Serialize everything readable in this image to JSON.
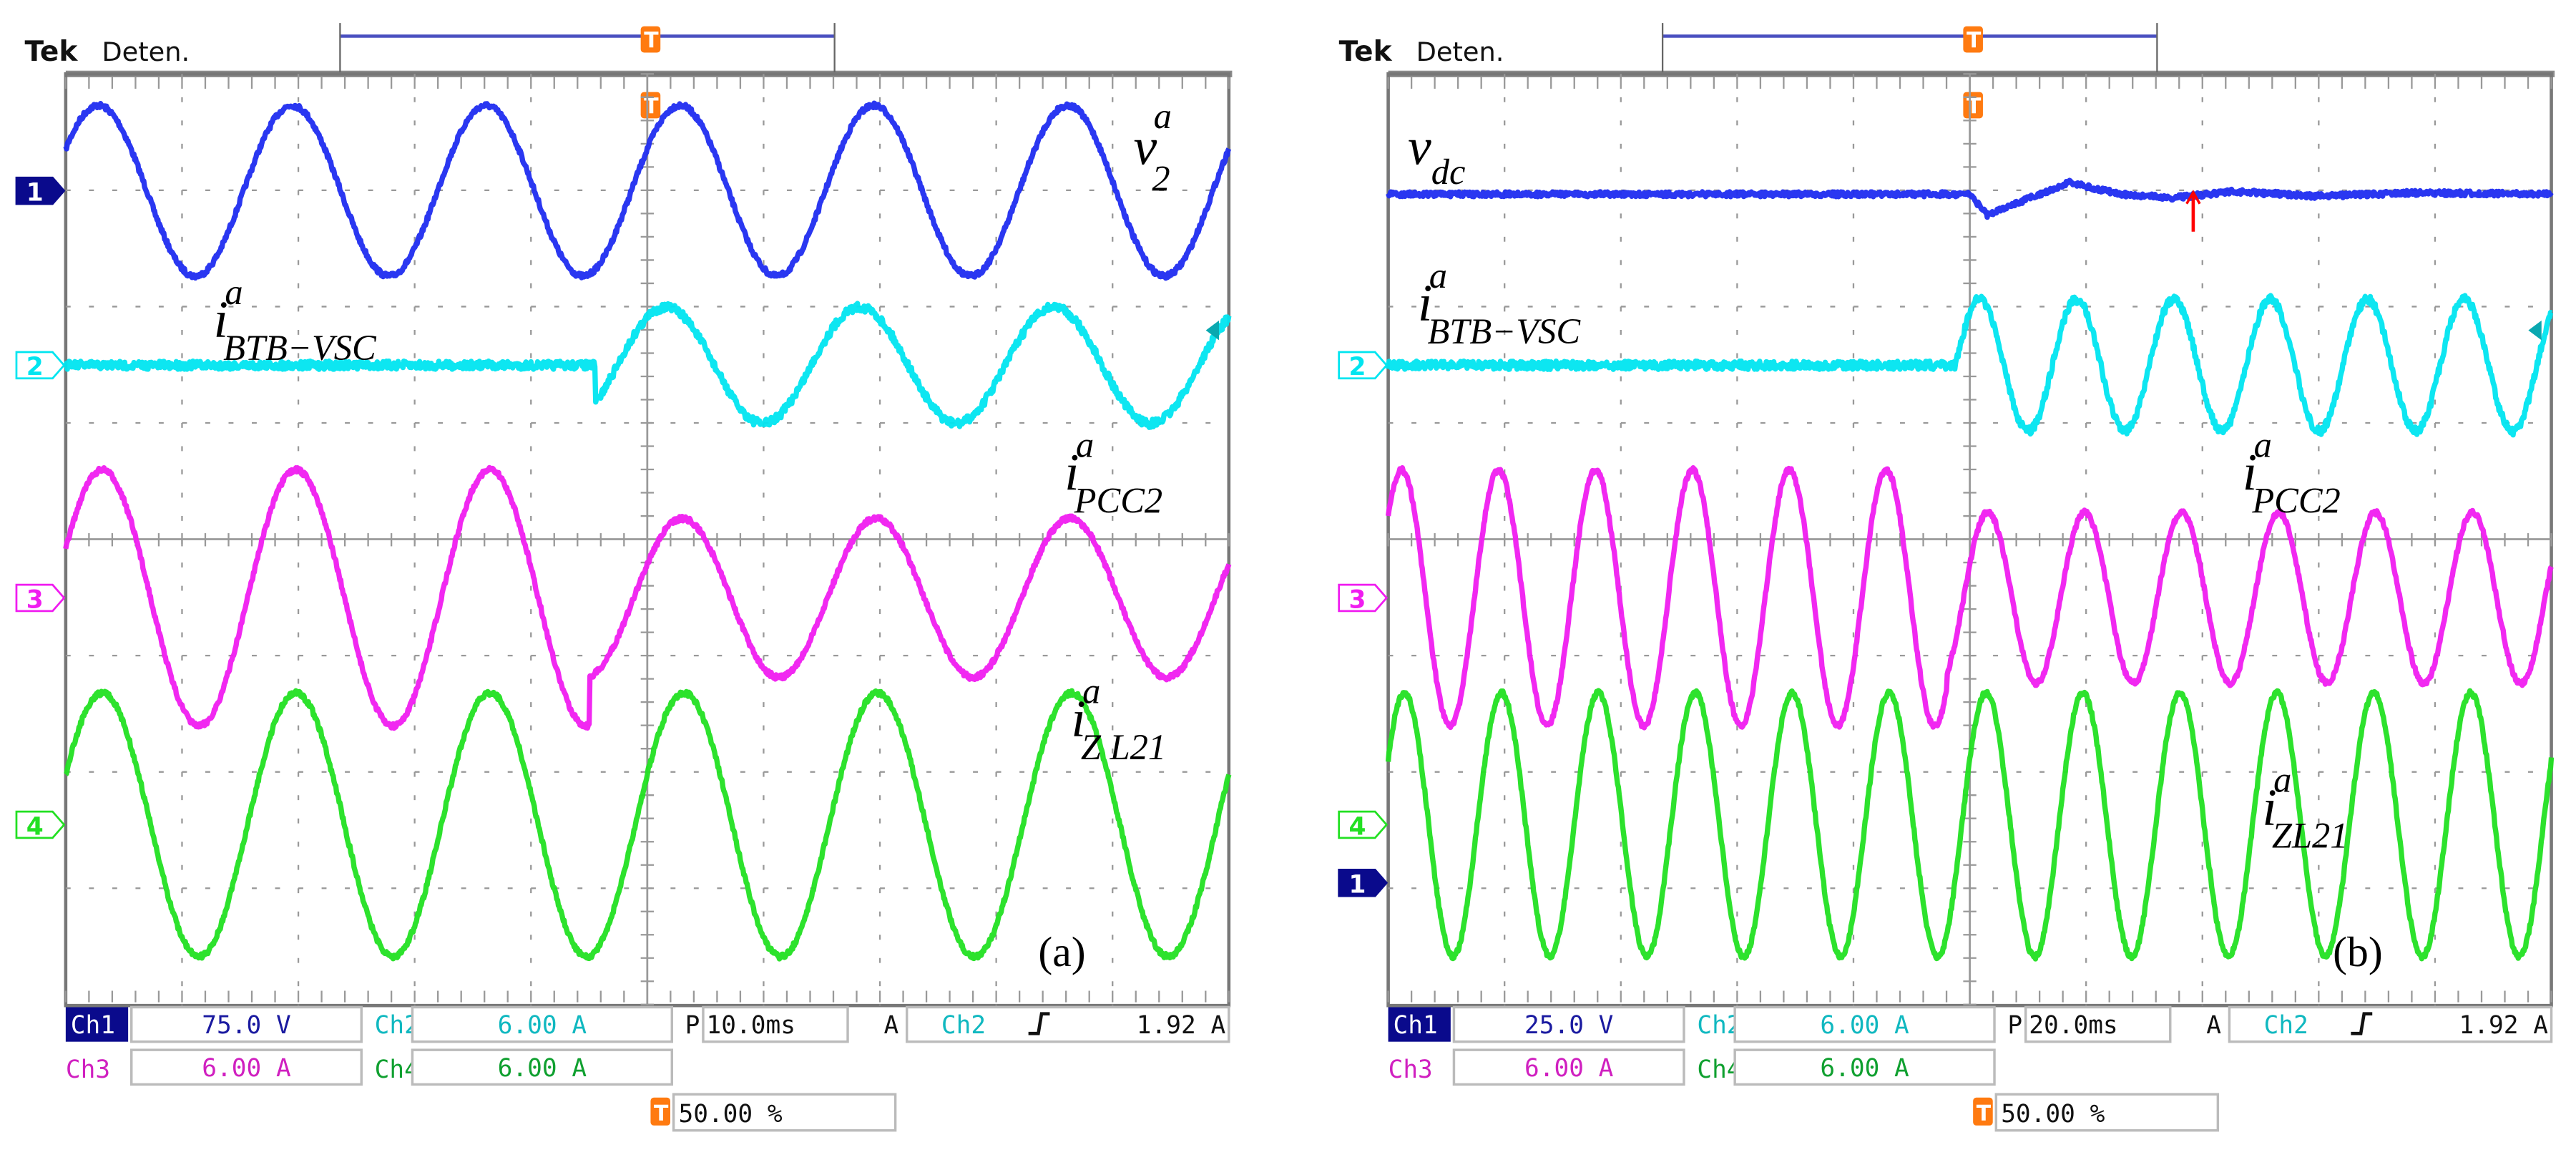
{
  "chart_data": [
    {
      "type": "line",
      "panel_label": "(a)",
      "header": {
        "brand": "Tek",
        "status": "Deten."
      },
      "xlabel": "",
      "ylabel": "",
      "xlim_ms": [
        -50,
        50
      ],
      "grid": true,
      "settings": {
        "ch1": {
          "name": "Ch1",
          "scale": "75.0 V"
        },
        "ch2": {
          "name": "Ch2",
          "scale": "6.00 A"
        },
        "ch3": {
          "name": "Ch3",
          "scale": "6.00 A"
        },
        "ch4": {
          "name": "Ch4",
          "scale": "6.00 A"
        },
        "timebase_prefix": "P",
        "timebase": "10.0ms",
        "trigger_prefix": "A",
        "trigger_source": "Ch2",
        "trigger_level": "1.92 A",
        "trigger_position": "50.00 %"
      },
      "series": [
        {
          "channel": "1",
          "label": {
            "base": "v",
            "sup": "a",
            "sub": "2"
          },
          "color": "#1f2cf0",
          "unit": "V",
          "volts_per_div": 75,
          "segments": [
            {
              "t_ms": [
                -50,
                50
              ],
              "amplitude": 55,
              "peak_ms": -47.2,
              "freq_hz": 60,
              "dc": 0
            }
          ]
        },
        {
          "channel": "2",
          "label": {
            "base": "i",
            "sup": "a",
            "sub": "BTB−VSC"
          },
          "color": "#00e5f0",
          "unit": "A",
          "volts_per_div": 6,
          "segments": [
            {
              "t_ms": [
                -50,
                -4.5
              ],
              "amplitude": 0,
              "peak_ms": 0,
              "freq_hz": 60,
              "dc": 0
            },
            {
              "t_ms": [
                -4.5,
                50
              ],
              "amplitude": 3.0,
              "peak_ms": 1.6,
              "freq_hz": 60,
              "dc": 0
            }
          ]
        },
        {
          "channel": "3",
          "label": {
            "base": "i",
            "sup": "a",
            "sub": "PCC2"
          },
          "color": "#f01cf0",
          "unit": "A",
          "volts_per_div": 6,
          "segments": [
            {
              "t_ms": [
                -50,
                -5
              ],
              "amplitude": 6.6,
              "peak_ms": -30.2,
              "freq_hz": 60,
              "dc": 0
            },
            {
              "t_ms": [
                -5,
                50
              ],
              "amplitude": 4.1,
              "peak_ms": 3.0,
              "freq_hz": 60,
              "dc": 0
            }
          ]
        },
        {
          "channel": "4",
          "label": {
            "base": "i",
            "sup": "a",
            "sub": "Z L21"
          },
          "color": "#22e022",
          "unit": "A",
          "volts_per_div": 6,
          "segments": [
            {
              "t_ms": [
                -50,
                50
              ],
              "amplitude": 6.8,
              "peak_ms": -30.2,
              "freq_hz": 60,
              "dc": 0
            }
          ]
        }
      ]
    },
    {
      "type": "line",
      "panel_label": "(b)",
      "header": {
        "brand": "Tek",
        "status": "Deten."
      },
      "xlabel": "",
      "ylabel": "",
      "xlim_ms": [
        -100,
        100
      ],
      "grid": true,
      "settings": {
        "ch1": {
          "name": "Ch1",
          "scale": "25.0 V"
        },
        "ch2": {
          "name": "Ch2",
          "scale": "6.00 A"
        },
        "ch3": {
          "name": "Ch3",
          "scale": "6.00 A"
        },
        "ch4": {
          "name": "Ch4",
          "scale": "6.00 A"
        },
        "timebase_prefix": "P",
        "timebase": "20.0ms",
        "trigger_prefix": "A",
        "trigger_source": "Ch2",
        "trigger_level": "1.92 A",
        "trigger_position": "50.00 %"
      },
      "series": [
        {
          "channel": "1",
          "label": {
            "base": "v",
            "sup": "",
            "sub": "dc"
          },
          "color": "#1f2cf0",
          "unit": "V",
          "volts_per_div": 25,
          "dc_level": 148,
          "transient": [
            [
              -100,
              0
            ],
            [
              0,
              0
            ],
            [
              3,
              -4.5
            ],
            [
              9,
              -1.5
            ],
            [
              17,
              2.5
            ],
            [
              26,
              0
            ],
            [
              35,
              -0.8
            ],
            [
              45,
              0.6
            ],
            [
              60,
              -0.4
            ],
            [
              75,
              0.3
            ],
            [
              100,
              0
            ]
          ]
        },
        {
          "channel": "2",
          "label": {
            "base": "i",
            "sup": "a",
            "sub": "BTB−VSC"
          },
          "color": "#00e5f0",
          "unit": "A",
          "volts_per_div": 6,
          "segments": [
            {
              "t_ms": [
                -100,
                -2.5
              ],
              "amplitude": 0,
              "peak_ms": 0,
              "freq_hz": 60,
              "dc": 0
            },
            {
              "t_ms": [
                -2.5,
                100
              ],
              "amplitude": 3.4,
              "peak_ms": 1.7,
              "freq_hz": 60,
              "dc": 0
            }
          ]
        },
        {
          "channel": "3",
          "label": {
            "base": "i",
            "sup": "a",
            "sub": "PCC2"
          },
          "color": "#f01cf0",
          "unit": "A",
          "volts_per_div": 6,
          "segments": [
            {
              "t_ms": [
                -100,
                -4
              ],
              "amplitude": 6.6,
              "peak_ms": -97.7,
              "freq_hz": 60,
              "dc": 0
            },
            {
              "t_ms": [
                -4,
                100
              ],
              "amplitude": 4.4,
              "peak_ms": 3.1,
              "freq_hz": 60,
              "dc": 0
            }
          ]
        },
        {
          "channel": "4",
          "label": {
            "base": "i",
            "sup": "a",
            "sub": "ZL21"
          },
          "color": "#22e022",
          "unit": "A",
          "volts_per_div": 6,
          "segments": [
            {
              "t_ms": [
                -100,
                100
              ],
              "amplitude": 6.8,
              "peak_ms": -97.2,
              "freq_hz": 60,
              "dc": 0
            }
          ]
        }
      ]
    }
  ],
  "icons": {
    "trigger": "trigger-T-icon",
    "edge": "rising-edge-icon",
    "cursor": "red-cursor-arrow-icon"
  },
  "colors": {
    "ch1_tag": "#0a0a8c",
    "trigger": "#ff7a10",
    "cursor": "#ff0000",
    "grid": "#8c8c8c"
  }
}
